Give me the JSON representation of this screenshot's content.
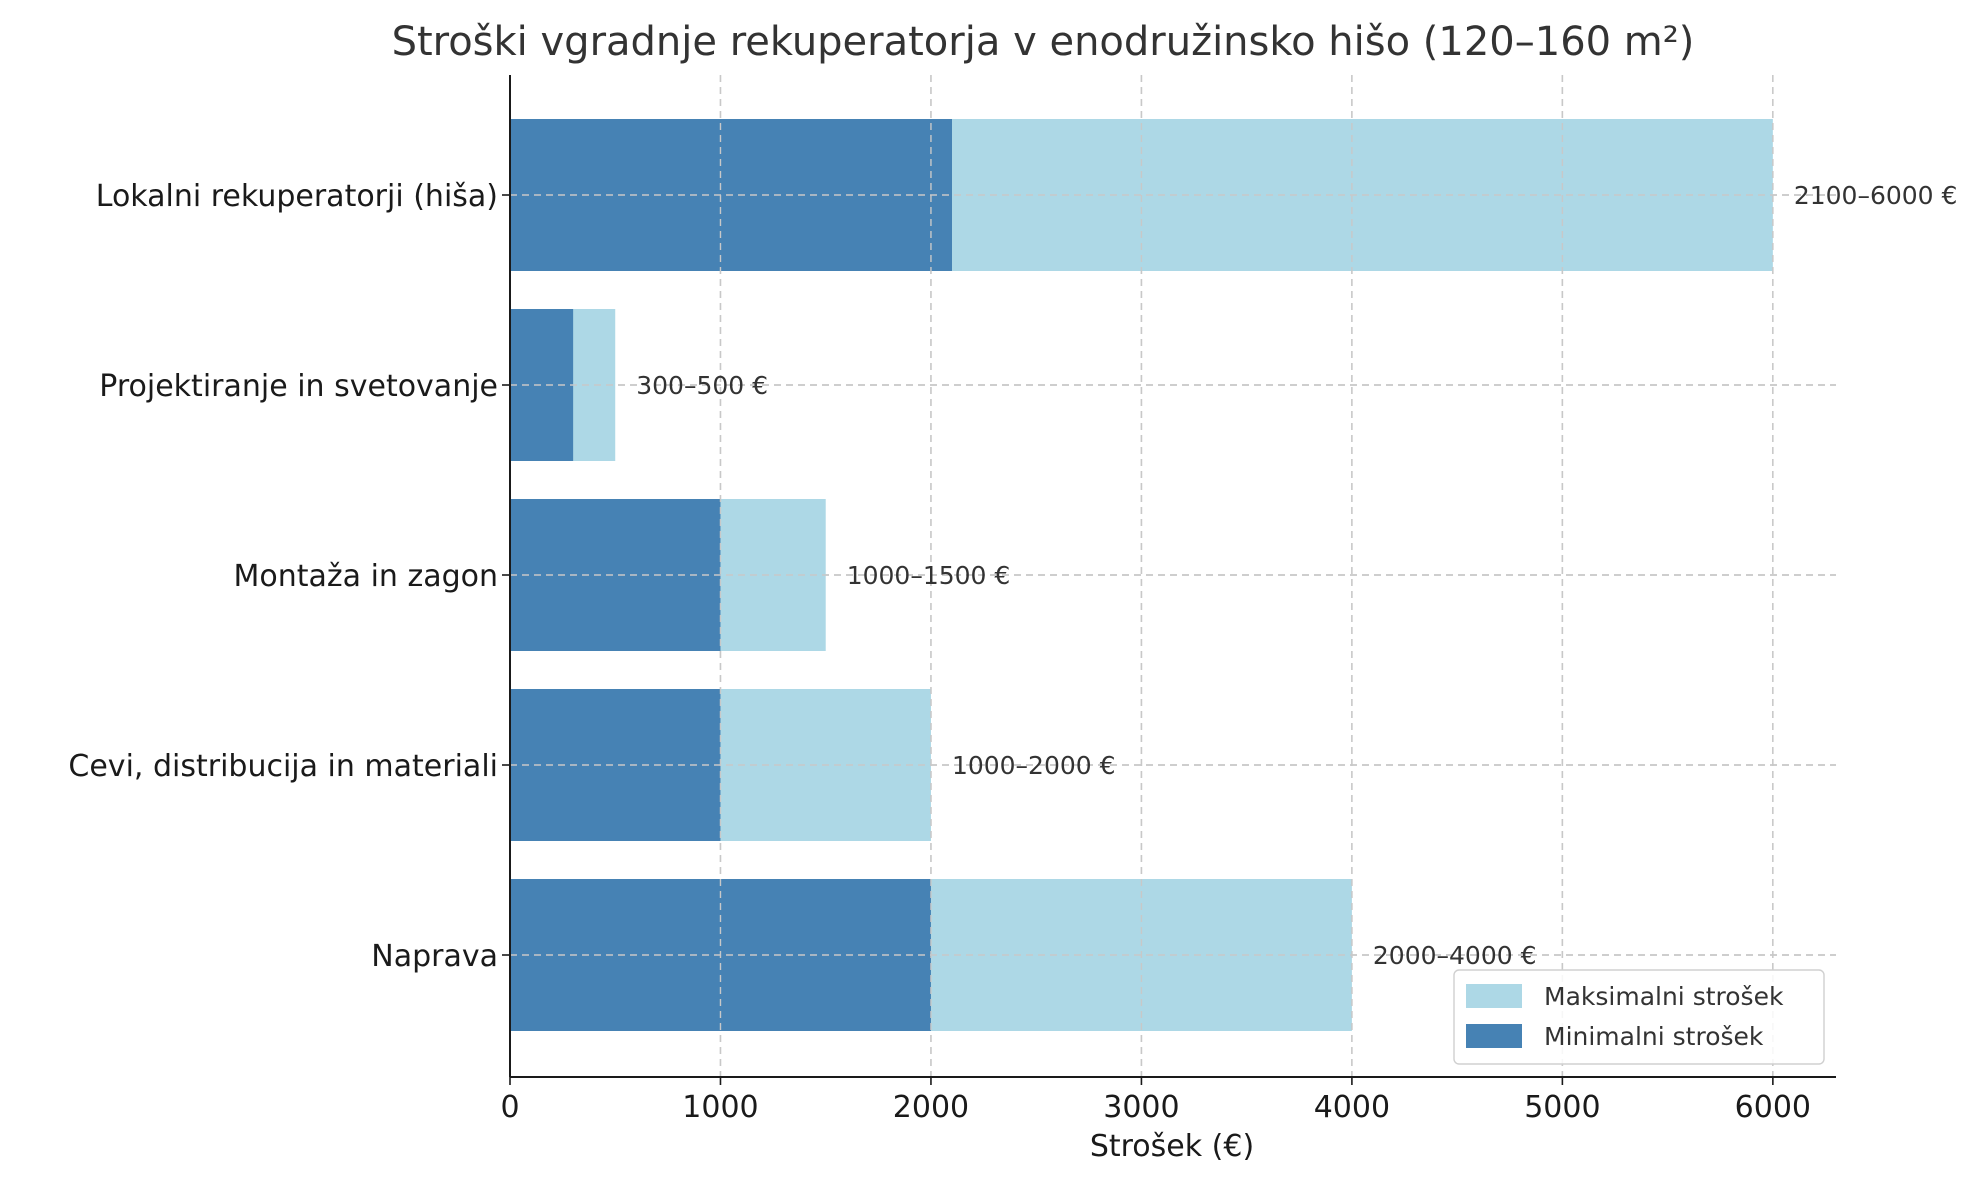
{
  "chart_data": {
    "type": "bar",
    "orientation": "horizontal",
    "stacking": "overlay",
    "title": "Stroški vgradnje rekuperatorja v enodružinsko hišo (120–160 m²)",
    "xlabel": "Strošek (€)",
    "ylabel": "",
    "xlim": [
      0,
      6300
    ],
    "xticks": [
      0,
      1000,
      2000,
      3000,
      4000,
      5000,
      6000
    ],
    "grid": true,
    "legend_position": "bottom-right",
    "categories": [
      "Naprava",
      "Cevi, distribucija in materiali",
      "Montaža in zagon",
      "Projektiranje in svetovanje",
      "Lokalni rekuperatorji (hiša)"
    ],
    "series": [
      {
        "name": "Maksimalni strošek",
        "color": "#add8e6",
        "values": [
          4000,
          2000,
          1500,
          500,
          6000
        ]
      },
      {
        "name": "Minimalni strošek",
        "color": "#4682b4",
        "values": [
          2000,
          1000,
          1000,
          300,
          2100
        ]
      }
    ],
    "data_labels": [
      "2000–4000 €",
      "1000–2000 €",
      "1000–1500 €",
      "300–500 €",
      "2100–6000 €"
    ]
  }
}
